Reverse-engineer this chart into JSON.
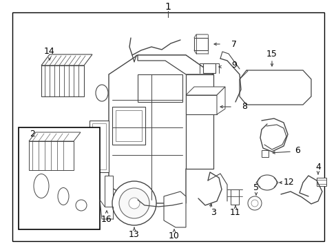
{
  "bg_color": "#ffffff",
  "border_color": "#000000",
  "line_color": "#444444",
  "fig_width": 4.89,
  "fig_height": 3.6,
  "dpi": 100
}
